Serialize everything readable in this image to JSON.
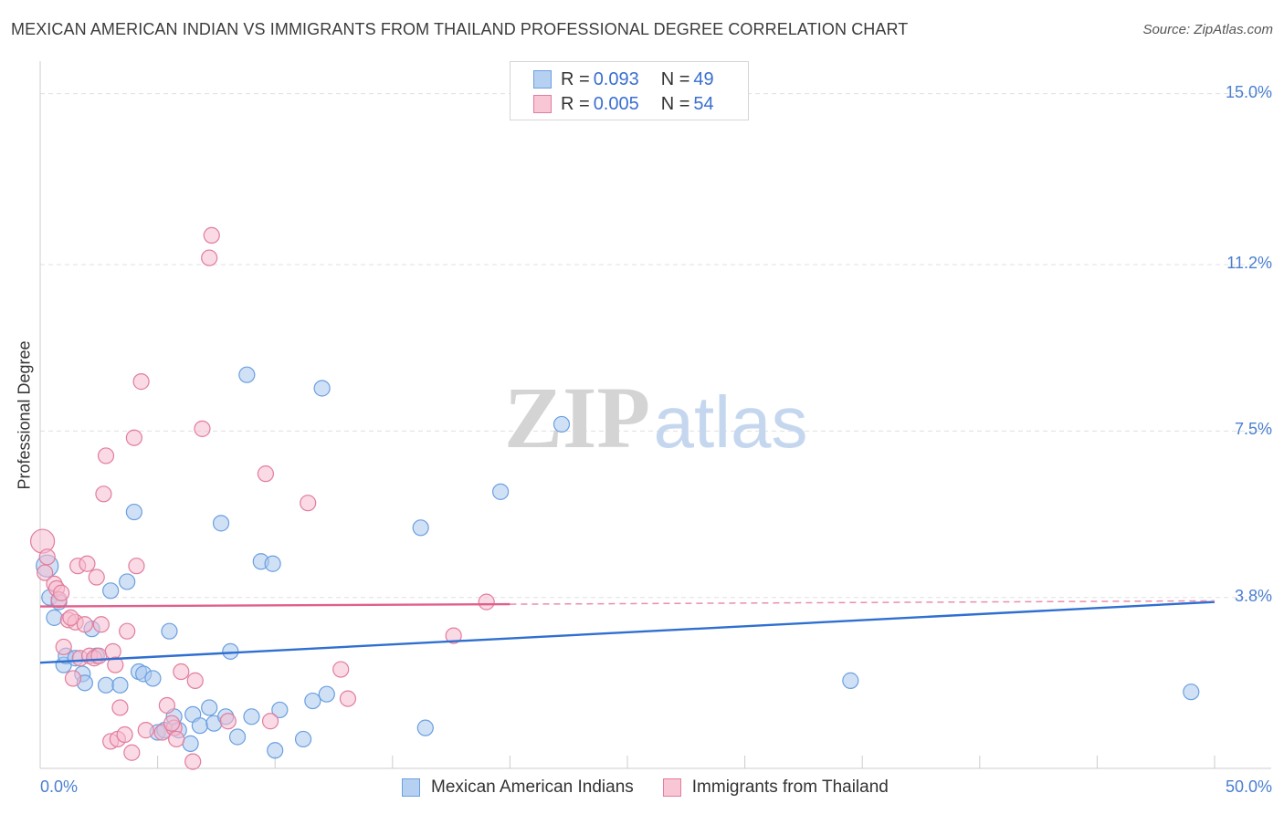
{
  "title": "MEXICAN AMERICAN INDIAN VS IMMIGRANTS FROM THAILAND PROFESSIONAL DEGREE CORRELATION CHART",
  "source": "Source: ZipAtlas.com",
  "watermark": {
    "zip": "ZIP",
    "atlas": "atlas"
  },
  "legend": {
    "rows": [
      {
        "r_label": "R = ",
        "r_value": "0.093",
        "n_label": "N = ",
        "n_value": "49"
      },
      {
        "r_label": "R = ",
        "r_value": "0.005",
        "n_label": "N = ",
        "n_value": "54"
      }
    ]
  },
  "chart_data": {
    "type": "scatter",
    "title": "MEXICAN AMERICAN INDIAN VS IMMIGRANTS FROM THAILAND PROFESSIONAL DEGREE CORRELATION CHART",
    "xlabel": "",
    "ylabel": "Professional Degree",
    "xlim": [
      0,
      50
    ],
    "ylim": [
      0,
      15.5
    ],
    "x_tick_labels": [
      "0.0%",
      "50.0%"
    ],
    "y_ticks": [
      3.8,
      7.5,
      11.2,
      15.0
    ],
    "y_tick_labels": [
      "3.8%",
      "7.5%",
      "11.2%",
      "15.0%"
    ],
    "grid": true,
    "legend_position": "top-center",
    "series": [
      {
        "name": "Mexican American Indians",
        "color": "#6a9fe0",
        "fill": "#a9c8ef",
        "r": 0.093,
        "n": 49,
        "trend": {
          "x": [
            0,
            50
          ],
          "y": [
            2.35,
            3.7
          ]
        },
        "points": [
          [
            0.3,
            4.5
          ],
          [
            0.4,
            3.8
          ],
          [
            0.6,
            3.35
          ],
          [
            1.0,
            2.3
          ],
          [
            1.1,
            2.5
          ],
          [
            1.5,
            2.45
          ],
          [
            1.8,
            2.1
          ],
          [
            1.9,
            1.9
          ],
          [
            2.2,
            3.1
          ],
          [
            2.4,
            2.5
          ],
          [
            2.8,
            1.85
          ],
          [
            3.0,
            3.95
          ],
          [
            3.4,
            1.85
          ],
          [
            3.7,
            4.15
          ],
          [
            4.0,
            5.7
          ],
          [
            4.2,
            2.15
          ],
          [
            4.4,
            2.1
          ],
          [
            4.8,
            2.0
          ],
          [
            5.0,
            0.8
          ],
          [
            5.3,
            0.85
          ],
          [
            5.5,
            3.05
          ],
          [
            5.7,
            1.15
          ],
          [
            5.9,
            0.85
          ],
          [
            6.4,
            0.55
          ],
          [
            6.5,
            1.2
          ],
          [
            6.8,
            0.95
          ],
          [
            7.2,
            1.35
          ],
          [
            7.4,
            1.0
          ],
          [
            7.7,
            5.45
          ],
          [
            7.9,
            1.15
          ],
          [
            8.1,
            2.6
          ],
          [
            8.4,
            0.7
          ],
          [
            8.8,
            8.75
          ],
          [
            9.0,
            1.15
          ],
          [
            9.4,
            4.6
          ],
          [
            9.9,
            4.55
          ],
          [
            10.0,
            0.4
          ],
          [
            10.2,
            1.3
          ],
          [
            11.2,
            0.65
          ],
          [
            11.6,
            1.5
          ],
          [
            12.0,
            8.45
          ],
          [
            12.2,
            1.65
          ],
          [
            16.2,
            5.35
          ],
          [
            16.4,
            0.9
          ],
          [
            19.6,
            6.15
          ],
          [
            22.2,
            7.65
          ],
          [
            34.5,
            1.95
          ],
          [
            49.0,
            1.7
          ],
          [
            0.8,
            3.7
          ]
        ]
      },
      {
        "name": "Immigrants from Thailand",
        "color": "#e27d9d",
        "fill": "#f6bccd",
        "r": 0.005,
        "n": 54,
        "trend": {
          "x": [
            0,
            20
          ],
          "y": [
            3.6,
            3.65
          ]
        },
        "trend_dashed_to": 50,
        "points": [
          [
            0.1,
            5.05
          ],
          [
            0.2,
            4.35
          ],
          [
            0.3,
            4.7
          ],
          [
            0.6,
            4.1
          ],
          [
            0.7,
            4.0
          ],
          [
            0.8,
            3.75
          ],
          [
            0.9,
            3.9
          ],
          [
            1.0,
            2.7
          ],
          [
            1.2,
            3.3
          ],
          [
            1.4,
            2.0
          ],
          [
            1.5,
            3.25
          ],
          [
            1.6,
            4.5
          ],
          [
            1.7,
            2.45
          ],
          [
            1.9,
            3.2
          ],
          [
            2.0,
            4.55
          ],
          [
            2.1,
            2.5
          ],
          [
            2.3,
            2.45
          ],
          [
            2.4,
            4.25
          ],
          [
            2.5,
            2.5
          ],
          [
            2.6,
            3.2
          ],
          [
            2.7,
            6.1
          ],
          [
            2.8,
            6.95
          ],
          [
            3.0,
            0.6
          ],
          [
            3.1,
            2.6
          ],
          [
            3.2,
            2.3
          ],
          [
            3.3,
            0.65
          ],
          [
            3.4,
            1.35
          ],
          [
            3.6,
            0.75
          ],
          [
            3.7,
            3.05
          ],
          [
            3.9,
            0.35
          ],
          [
            4.0,
            7.35
          ],
          [
            4.1,
            4.5
          ],
          [
            4.3,
            8.6
          ],
          [
            4.5,
            0.85
          ],
          [
            5.2,
            0.8
          ],
          [
            5.4,
            1.4
          ],
          [
            5.7,
            0.9
          ],
          [
            5.8,
            0.65
          ],
          [
            6.0,
            2.15
          ],
          [
            6.5,
            0.15
          ],
          [
            6.6,
            1.95
          ],
          [
            6.9,
            7.55
          ],
          [
            7.2,
            11.35
          ],
          [
            7.3,
            11.85
          ],
          [
            8.0,
            1.05
          ],
          [
            9.6,
            6.55
          ],
          [
            9.8,
            1.05
          ],
          [
            11.4,
            5.9
          ],
          [
            12.8,
            2.2
          ],
          [
            13.1,
            1.55
          ],
          [
            17.6,
            2.95
          ],
          [
            19.0,
            3.7
          ],
          [
            5.6,
            1.0
          ],
          [
            1.3,
            3.35
          ]
        ]
      }
    ]
  }
}
